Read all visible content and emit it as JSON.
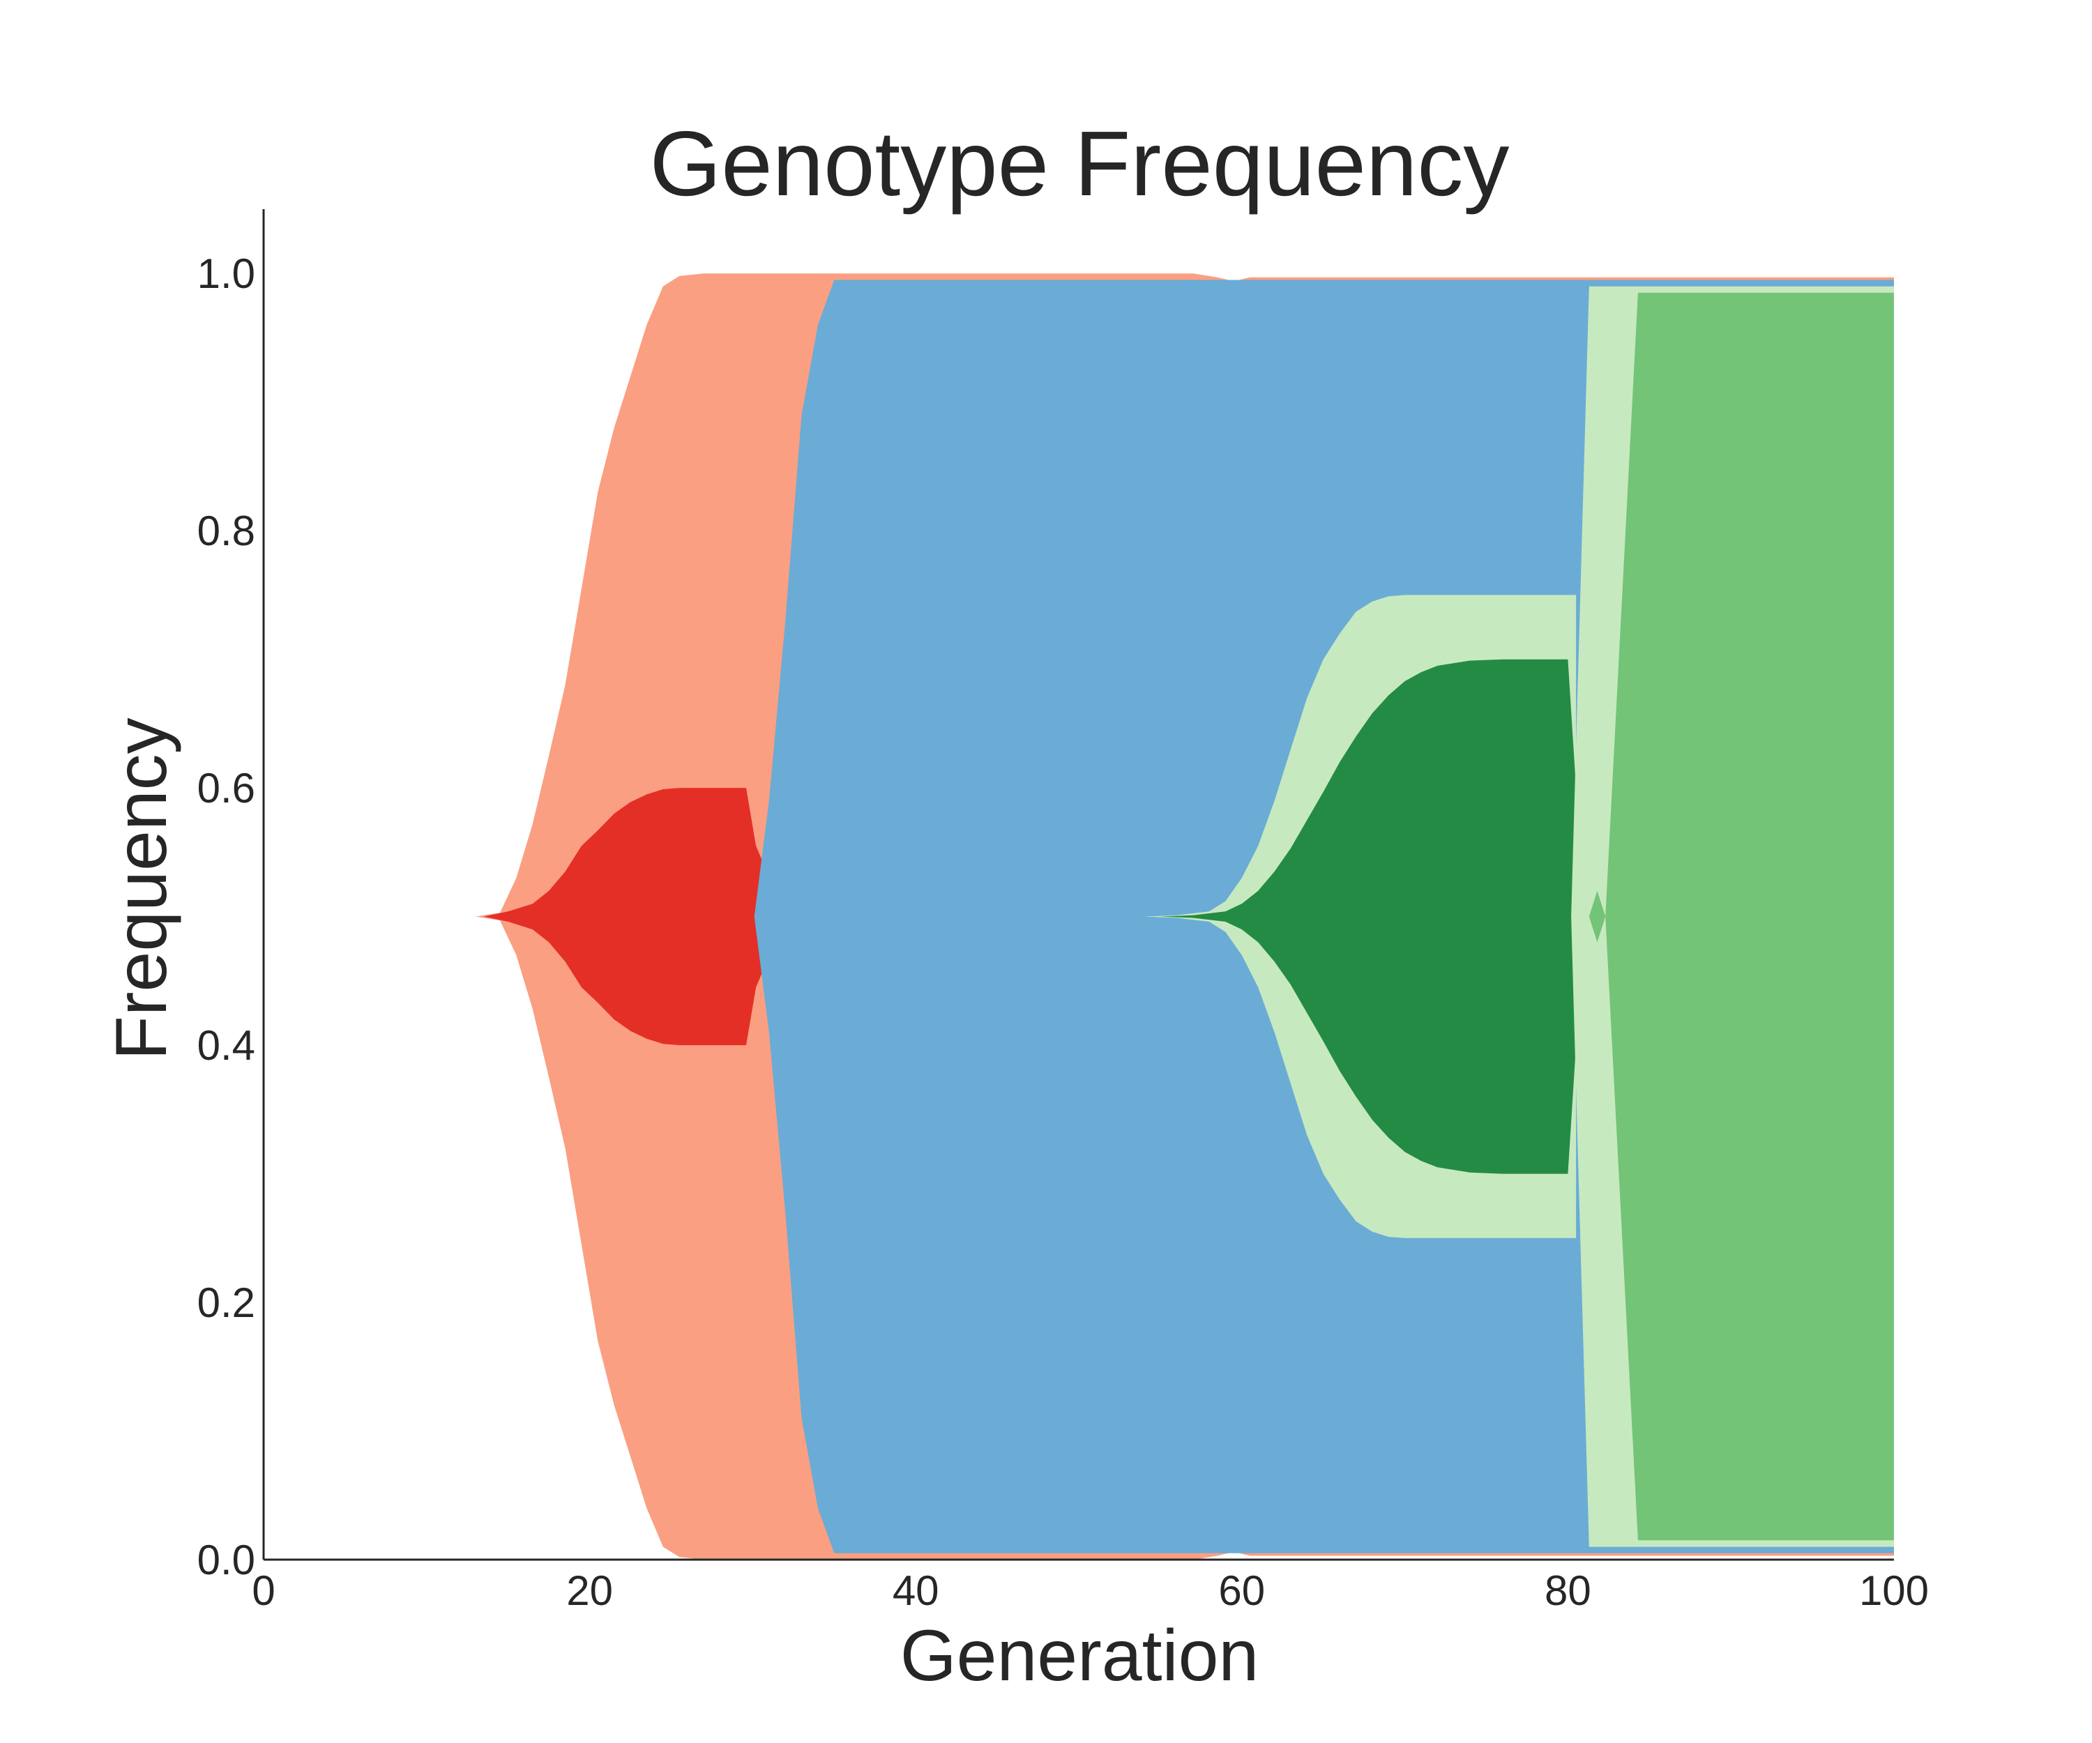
{
  "chart_data": {
    "type": "area",
    "title": "Genotype Frequency",
    "xlabel": "Generation",
    "ylabel": "Frequency",
    "xlim": [
      0,
      100
    ],
    "ylim": [
      0,
      1.05
    ],
    "xticks": [
      0,
      20,
      40,
      60,
      80,
      100
    ],
    "yticks": [
      0.0,
      0.2,
      0.4,
      0.6,
      0.8,
      1.0
    ],
    "xtick_labels": [
      "0",
      "20",
      "40",
      "60",
      "80",
      "100"
    ],
    "ytick_labels": [
      "0.0",
      "0.2",
      "0.4",
      "0.6",
      "0.8",
      "1.0"
    ],
    "grid": false,
    "layout": "centered-nested",
    "series": [
      {
        "color": "#fa9f82",
        "x": [
          13,
          14.5,
          15.5,
          16.5,
          17.5,
          18.5,
          19.5,
          20.5,
          21.5,
          22.5,
          23.5,
          24.5,
          25.5,
          27,
          30,
          35,
          57,
          58.5,
          59.5,
          60.5,
          80,
          100
        ],
        "extent": [
          0,
          0.003,
          0.03,
          0.072,
          0.125,
          0.18,
          0.255,
          0.33,
          0.38,
          0.42,
          0.46,
          0.49,
          0.498,
          0.5,
          0.5,
          0.5,
          0.5,
          0.497,
          0.494,
          0.497,
          0.497,
          0.497
        ]
      },
      {
        "color": "#e42f27",
        "x": [
          13.5,
          15,
          16.5,
          17.5,
          18.5,
          19.5,
          20.5,
          21.5,
          22.5,
          23.5,
          24.5,
          25.5,
          27,
          29.6,
          30.2,
          30.7
        ],
        "extent": [
          0,
          0.004,
          0.01,
          0.02,
          0.035,
          0.055,
          0.067,
          0.08,
          0.089,
          0.095,
          0.099,
          0.1,
          0.1,
          0.1,
          0.055,
          0.04
        ]
      },
      {
        "color": "#6aacd5",
        "x": [
          30.1,
          31,
          32,
          33,
          34,
          35,
          57,
          80,
          81.5,
          100
        ],
        "extent": [
          0,
          0.09,
          0.23,
          0.39,
          0.46,
          0.495,
          0.495,
          0.495,
          0.495,
          0.495
        ]
      },
      {
        "color": "#c7e9c0",
        "x": [
          54,
          56,
          58,
          59,
          60,
          61,
          62,
          63,
          64,
          65,
          66,
          67,
          68,
          69,
          70,
          72,
          74,
          80,
          80.5
        ],
        "extent": [
          0,
          0.001,
          0.004,
          0.012,
          0.03,
          0.055,
          0.09,
          0.13,
          0.17,
          0.2,
          0.22,
          0.237,
          0.245,
          0.249,
          0.25,
          0.25,
          0.25,
          0.25,
          0.25
        ]
      },
      {
        "color": "#248b44",
        "x": [
          55,
          57,
          59,
          60,
          61,
          62,
          63,
          64,
          65,
          66,
          67,
          68,
          69,
          70,
          71,
          72,
          74,
          76,
          80,
          81
        ],
        "extent": [
          0,
          0.001,
          0.004,
          0.01,
          0.02,
          0.035,
          0.053,
          0.075,
          0.097,
          0.12,
          0.14,
          0.158,
          0.172,
          0.183,
          0.19,
          0.195,
          0.199,
          0.2,
          0.2,
          0.0
        ]
      },
      {
        "color": "#c7e9c0",
        "x": [
          80.2,
          81.3,
          100
        ],
        "extent": [
          0.0,
          0.49,
          0.49
        ]
      },
      {
        "color": "#73c476",
        "x": [
          81.3,
          81.8,
          82.3,
          84.3,
          100
        ],
        "extent": [
          0.0,
          0.02,
          0.0,
          0.485,
          0.485
        ]
      }
    ]
  }
}
